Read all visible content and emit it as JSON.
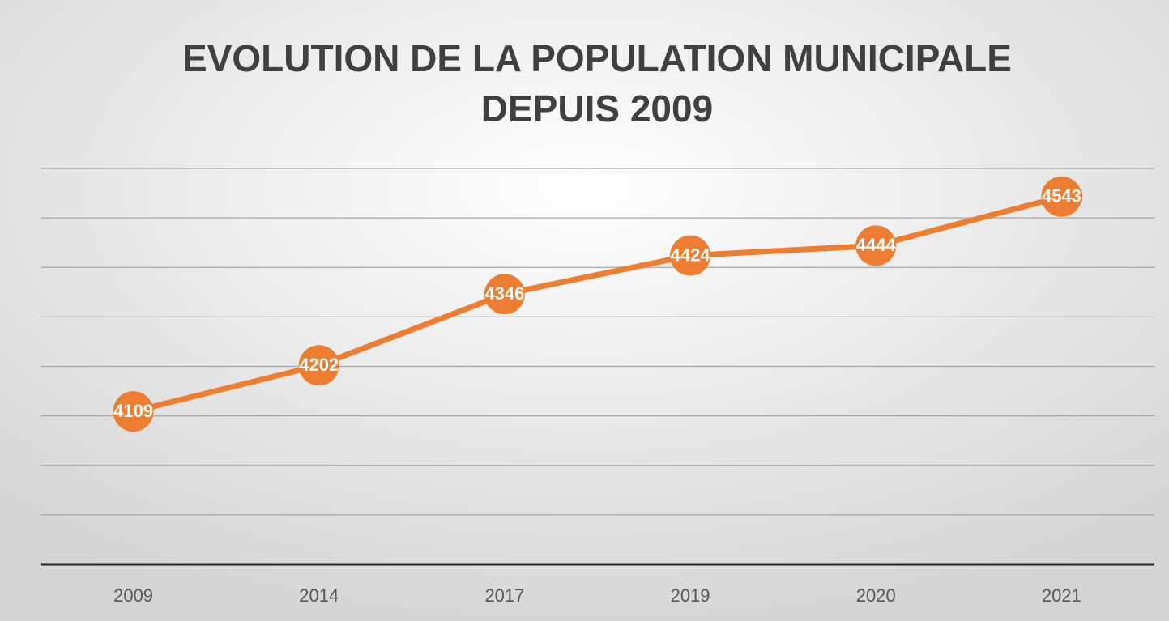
{
  "chart_data": {
    "type": "line",
    "title": [
      "EVOLUTION DE LA POPULATION MUNICIPALE",
      "DEPUIS 2009"
    ],
    "categories": [
      "2009",
      "2014",
      "2017",
      "2019",
      "2020",
      "2021"
    ],
    "values": [
      4109,
      4202,
      4346,
      4424,
      4444,
      4543
    ],
    "color": "#ed7d31",
    "ylim": [
      3800,
      4600
    ],
    "yticks": [
      3800,
      3900,
      4000,
      4100,
      4200,
      4300,
      4400,
      4500,
      4600
    ],
    "grid": true
  }
}
